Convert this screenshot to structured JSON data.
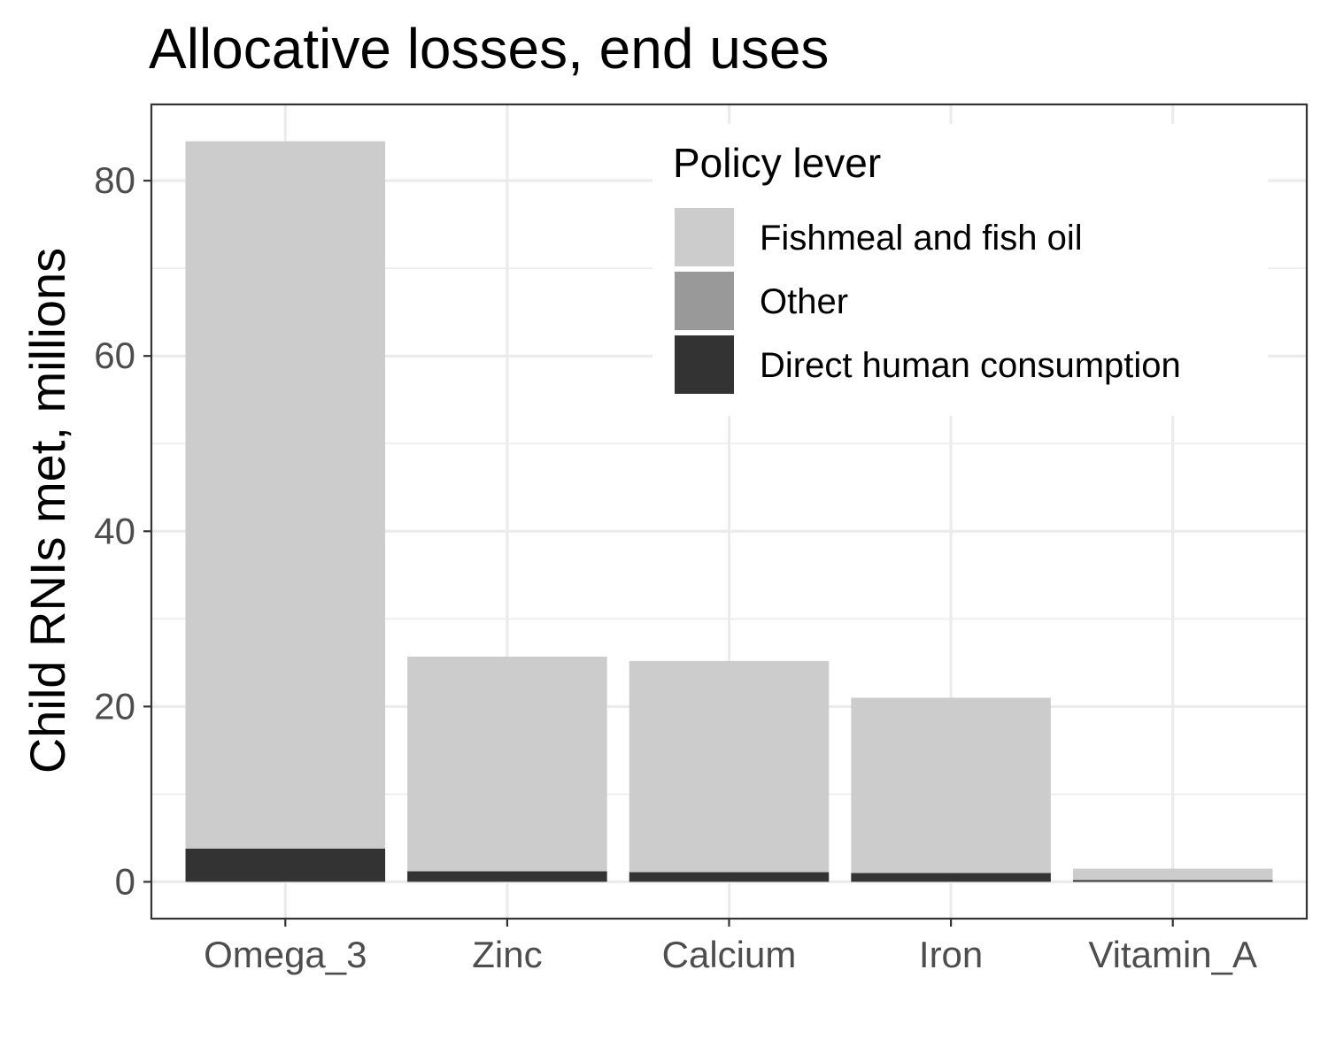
{
  "chart_data": {
    "type": "bar",
    "stacked": true,
    "title": "Allocative losses, end uses",
    "xlabel": "",
    "ylabel": "Child RNIs met, millions",
    "categories": [
      "Omega_3",
      "Zinc",
      "Calcium",
      "Iron",
      "Vitamin_A"
    ],
    "ylim": [
      -4.2,
      88.7
    ],
    "yticks": [
      0,
      20,
      40,
      60,
      80
    ],
    "ytick_labels": [
      "0",
      "20",
      "40",
      "60",
      "80"
    ],
    "series": [
      {
        "name": "Direct human consumption",
        "color": "#333333",
        "values": [
          3.8,
          1.2,
          1.1,
          1.0,
          0.2
        ]
      },
      {
        "name": "Other",
        "color": "#999999",
        "values": [
          0,
          0,
          0,
          0,
          0
        ]
      },
      {
        "name": "Fishmeal and fish oil",
        "color": "#cccccc",
        "values": [
          80.7,
          24.5,
          24.1,
          20.0,
          1.3
        ]
      }
    ],
    "legend": {
      "title": "Policy lever",
      "position": "top-right",
      "entries": [
        {
          "label": "Fishmeal and fish oil",
          "color": "#cccccc"
        },
        {
          "label": "Other",
          "color": "#999999"
        },
        {
          "label": "Direct human consumption",
          "color": "#333333"
        }
      ]
    },
    "grid": true,
    "theme": "bw"
  }
}
